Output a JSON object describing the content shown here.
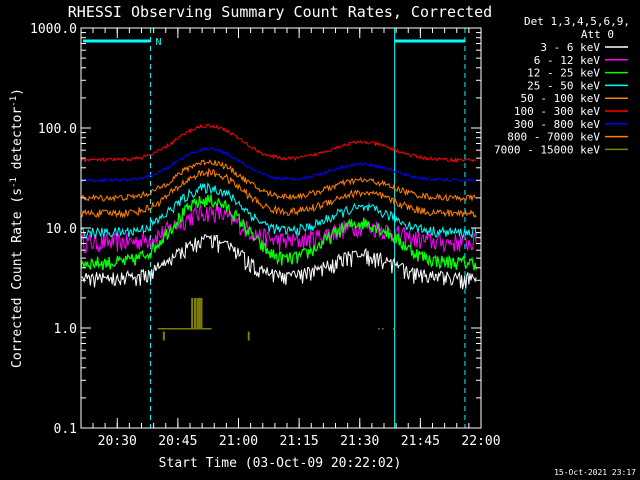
{
  "chart_data": {
    "type": "line",
    "title": "RHESSI Observing Summary Count Rates, Corrected",
    "xlabel": "Start Time (03-Oct-09 20:22:02)",
    "ylabel_main": "Corrected Count Rate (s",
    "ylabel_sup1": "-1",
    "ylabel_mid": " detector",
    "ylabel_sup2": "-1",
    "ylabel_end": ")",
    "y_scale": "log",
    "ylim": [
      0.1,
      1000
    ],
    "yticks": [
      {
        "value": 1000,
        "label": "1000.0"
      },
      {
        "value": 100,
        "label": "100.0"
      },
      {
        "value": 10,
        "label": "10.0"
      },
      {
        "value": 1,
        "label": "1.0"
      },
      {
        "value": 0.1,
        "label": "0.1"
      }
    ],
    "xlim_minutes": [
      0,
      98.97
    ],
    "xticks": [
      {
        "minute": 8.97,
        "label": "20:30"
      },
      {
        "minute": 23.97,
        "label": "20:45"
      },
      {
        "minute": 38.97,
        "label": "21:00"
      },
      {
        "minute": 53.97,
        "label": "21:15"
      },
      {
        "minute": 68.97,
        "label": "21:30"
      },
      {
        "minute": 83.97,
        "label": "21:45"
      },
      {
        "minute": 98.97,
        "label": "22:00"
      }
    ],
    "legend_header": [
      "Det 1,3,4,5,6,9,",
      "Att 0"
    ],
    "legend_position": "right",
    "series": [
      {
        "name": "3 - 6 keV",
        "color": "#ffffff",
        "base": 3.3,
        "p1": 2.4,
        "p2": 1.7
      },
      {
        "name": "6 - 12 keV",
        "color": "#ff00ff",
        "base": 7.2,
        "p1": 2.0,
        "p2": 1.45
      },
      {
        "name": "12 - 25 keV",
        "color": "#00ff00",
        "base": 4.5,
        "p1": 4.2,
        "p2": 2.5
      },
      {
        "name": "25 - 50 keV",
        "color": "#00ffff",
        "base": 9.0,
        "p1": 2.8,
        "p2": 1.75
      },
      {
        "name": "50 - 100 keV",
        "color": "#ff8000",
        "base": 14.0,
        "p1": 2.55,
        "p2": 1.6
      },
      {
        "name": "100 - 300 keV",
        "color": "#ff0000",
        "base": 48.0,
        "p1": 2.2,
        "p2": 1.5
      },
      {
        "name": "300 - 800 keV",
        "color": "#0000ff",
        "base": 30.0,
        "p1": 2.05,
        "p2": 1.45
      },
      {
        "name": "800 - 7000 keV",
        "color": "#ff8000",
        "base": 20.0,
        "p1": 2.3,
        "p2": 1.5
      },
      {
        "name": "7000 - 15000 keV",
        "color": "#808000",
        "base": 1.0,
        "p1": 1.0,
        "p2": 1.0
      }
    ],
    "hump1_center_minute": 31.5,
    "hump2_center_minute": 69.5,
    "night_markers": [
      {
        "minute": 0.0,
        "style": "solid"
      },
      {
        "minute": 17.2,
        "style": "dashed"
      },
      {
        "minute": 77.6,
        "style": "solid"
      },
      {
        "minute": 95.0,
        "style": "dashed"
      }
    ],
    "night_bars": [
      {
        "start_minute": 0.5,
        "end_minute": 17.2,
        "label": "N"
      },
      {
        "start_minute": 77.6,
        "end_minute": 95.0,
        "label": ""
      }
    ],
    "footer_date": "15-Oct-2021 23:17"
  }
}
